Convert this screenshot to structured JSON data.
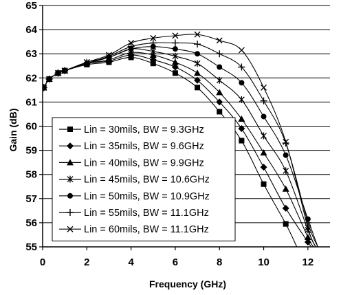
{
  "chart_data": {
    "type": "line",
    "title": "",
    "xlabel": "Frequency (GHz)",
    "ylabel": "Gain (dB)",
    "xlim": [
      0,
      13
    ],
    "ylim": [
      55,
      65
    ],
    "xticks": [
      0,
      2,
      4,
      6,
      8,
      10,
      12
    ],
    "yticks": [
      55,
      56,
      57,
      58,
      59,
      60,
      61,
      62,
      63,
      64,
      65
    ],
    "grid": "horizontal",
    "legend_position": "lower-left",
    "line_color": "#000000",
    "series": [
      {
        "name": "Lin = 30mils, BW = 9.3GHz",
        "marker": "square",
        "markers": [
          [
            0.05,
            61.6
          ],
          [
            0.3,
            61.95
          ],
          [
            0.7,
            62.2
          ],
          [
            1.0,
            62.3
          ],
          [
            2.0,
            62.55
          ],
          [
            3.0,
            62.65
          ],
          [
            4.0,
            62.85
          ],
          [
            5.0,
            62.6
          ],
          [
            6.0,
            62.2
          ],
          [
            7.0,
            61.6
          ],
          [
            8.0,
            60.6
          ],
          [
            9.0,
            59.4
          ],
          [
            10.0,
            57.6
          ],
          [
            11.0,
            55.95
          ]
        ],
        "curve": [
          [
            0.05,
            61.6
          ],
          [
            0.3,
            61.95
          ],
          [
            0.7,
            62.2
          ],
          [
            1.0,
            62.3
          ],
          [
            2.0,
            62.55
          ],
          [
            3.0,
            62.65
          ],
          [
            4.0,
            62.85
          ],
          [
            5.0,
            62.6
          ],
          [
            6.0,
            62.2
          ],
          [
            7.0,
            61.6
          ],
          [
            8.0,
            60.6
          ],
          [
            9.0,
            59.4
          ],
          [
            10.0,
            57.6
          ],
          [
            11.0,
            55.95
          ],
          [
            11.5,
            55.0
          ]
        ]
      },
      {
        "name": "Lin = 35mils, BW = 9.6GHz",
        "marker": "diamond",
        "markers": [
          [
            0.05,
            61.6
          ],
          [
            0.3,
            61.95
          ],
          [
            0.7,
            62.2
          ],
          [
            1.0,
            62.3
          ],
          [
            2.0,
            62.6
          ],
          [
            3.0,
            62.7
          ],
          [
            4.0,
            62.95
          ],
          [
            5.0,
            62.75
          ],
          [
            6.0,
            62.45
          ],
          [
            7.0,
            61.9
          ],
          [
            8.0,
            61.0
          ],
          [
            9.0,
            59.9
          ],
          [
            10.0,
            58.3
          ],
          [
            11.0,
            56.6
          ],
          [
            12.0,
            55.2
          ]
        ],
        "curve": [
          [
            0.05,
            61.6
          ],
          [
            0.3,
            61.95
          ],
          [
            0.7,
            62.2
          ],
          [
            1.0,
            62.3
          ],
          [
            2.0,
            62.6
          ],
          [
            3.0,
            62.7
          ],
          [
            4.0,
            62.95
          ],
          [
            5.0,
            62.75
          ],
          [
            6.0,
            62.45
          ],
          [
            7.0,
            61.9
          ],
          [
            8.0,
            61.0
          ],
          [
            9.0,
            59.9
          ],
          [
            10.0,
            58.3
          ],
          [
            11.0,
            56.6
          ],
          [
            12.0,
            55.2
          ],
          [
            12.15,
            55.0
          ]
        ]
      },
      {
        "name": "Lin = 40mils, BW = 9.9GHz",
        "marker": "triangle",
        "markers": [
          [
            0.05,
            61.6
          ],
          [
            0.3,
            61.95
          ],
          [
            0.7,
            62.2
          ],
          [
            1.0,
            62.3
          ],
          [
            2.0,
            62.6
          ],
          [
            3.0,
            62.75
          ],
          [
            4.0,
            63.05
          ],
          [
            5.0,
            62.95
          ],
          [
            6.0,
            62.65
          ],
          [
            7.0,
            62.2
          ],
          [
            8.0,
            61.4
          ],
          [
            9.0,
            60.3
          ],
          [
            10.0,
            58.9
          ],
          [
            11.0,
            57.4
          ],
          [
            12.0,
            55.4
          ]
        ],
        "curve": [
          [
            0.05,
            61.6
          ],
          [
            0.3,
            61.95
          ],
          [
            0.7,
            62.2
          ],
          [
            1.0,
            62.3
          ],
          [
            2.0,
            62.6
          ],
          [
            3.0,
            62.75
          ],
          [
            4.0,
            63.05
          ],
          [
            5.0,
            62.95
          ],
          [
            6.0,
            62.65
          ],
          [
            7.0,
            62.2
          ],
          [
            8.0,
            61.4
          ],
          [
            9.0,
            60.3
          ],
          [
            10.0,
            58.9
          ],
          [
            11.0,
            57.4
          ],
          [
            12.0,
            55.4
          ],
          [
            12.25,
            55.0
          ]
        ]
      },
      {
        "name": "Lin = 45mils, BW = 10.6GHz",
        "marker": "asterisk",
        "markers": [
          [
            0.05,
            61.6
          ],
          [
            0.3,
            61.95
          ],
          [
            0.7,
            62.2
          ],
          [
            1.0,
            62.3
          ],
          [
            2.0,
            62.65
          ],
          [
            3.0,
            62.85
          ],
          [
            4.0,
            63.2
          ],
          [
            5.0,
            63.1
          ],
          [
            6.0,
            62.9
          ],
          [
            7.0,
            62.6
          ],
          [
            8.0,
            61.9
          ],
          [
            9.0,
            61.1
          ],
          [
            10.0,
            59.6
          ],
          [
            11.0,
            58.15
          ],
          [
            12.0,
            55.7
          ]
        ],
        "curve": [
          [
            0.05,
            61.6
          ],
          [
            0.3,
            61.95
          ],
          [
            0.7,
            62.2
          ],
          [
            1.0,
            62.3
          ],
          [
            2.0,
            62.65
          ],
          [
            3.0,
            62.85
          ],
          [
            4.0,
            63.2
          ],
          [
            5.0,
            63.1
          ],
          [
            6.0,
            62.9
          ],
          [
            7.0,
            62.6
          ],
          [
            8.0,
            61.9
          ],
          [
            9.0,
            61.1
          ],
          [
            10.0,
            59.6
          ],
          [
            11.0,
            58.15
          ],
          [
            12.0,
            55.7
          ],
          [
            12.35,
            55.0
          ]
        ]
      },
      {
        "name": "Lin = 50mils, BW = 10.9GHz",
        "marker": "circle",
        "markers": [
          [
            0.05,
            61.6
          ],
          [
            0.3,
            61.95
          ],
          [
            0.7,
            62.2
          ],
          [
            1.0,
            62.3
          ],
          [
            2.0,
            62.6
          ],
          [
            3.0,
            62.85
          ],
          [
            4.0,
            63.2
          ],
          [
            5.0,
            63.3
          ],
          [
            6.0,
            63.2
          ],
          [
            7.0,
            63.0
          ],
          [
            8.0,
            62.45
          ],
          [
            9.0,
            61.8
          ],
          [
            10.0,
            60.4
          ],
          [
            11.0,
            58.8
          ],
          [
            12.0,
            56.15
          ]
        ],
        "curve": [
          [
            0.05,
            61.6
          ],
          [
            0.3,
            61.95
          ],
          [
            0.7,
            62.2
          ],
          [
            1.0,
            62.3
          ],
          [
            2.0,
            62.6
          ],
          [
            3.0,
            62.85
          ],
          [
            4.0,
            63.2
          ],
          [
            5.0,
            63.3
          ],
          [
            6.0,
            63.2
          ],
          [
            7.0,
            63.0
          ],
          [
            8.0,
            62.45
          ],
          [
            9.0,
            61.8
          ],
          [
            10.0,
            60.4
          ],
          [
            11.0,
            58.8
          ],
          [
            12.0,
            56.15
          ],
          [
            12.45,
            55.0
          ]
        ]
      },
      {
        "name": "Lin = 55mils, BW = 11.1GHz",
        "marker": "plus",
        "markers": [
          [
            0.05,
            61.6
          ],
          [
            0.3,
            61.95
          ],
          [
            0.7,
            62.2
          ],
          [
            1.0,
            62.3
          ],
          [
            2.0,
            62.6
          ],
          [
            3.0,
            62.9
          ],
          [
            4.0,
            63.3
          ],
          [
            5.0,
            63.45
          ],
          [
            6.0,
            63.45
          ],
          [
            7.0,
            63.4
          ],
          [
            8.0,
            63.0
          ],
          [
            9.0,
            62.45
          ],
          [
            10.0,
            61.05
          ],
          [
            11.0,
            59.3
          ],
          [
            12.0,
            56.0
          ]
        ],
        "curve": [
          [
            0.05,
            61.6
          ],
          [
            0.3,
            61.95
          ],
          [
            0.7,
            62.2
          ],
          [
            1.0,
            62.3
          ],
          [
            2.0,
            62.6
          ],
          [
            3.0,
            62.9
          ],
          [
            4.0,
            63.3
          ],
          [
            5.0,
            63.45
          ],
          [
            6.0,
            63.45
          ],
          [
            7.0,
            63.4
          ],
          [
            8.0,
            63.0
          ],
          [
            9.0,
            62.45
          ],
          [
            10.0,
            61.05
          ],
          [
            11.0,
            59.3
          ],
          [
            12.0,
            56.0
          ],
          [
            12.45,
            55.0
          ]
        ]
      },
      {
        "name": "Lin = 60mils, BW = 11.1GHz",
        "marker": "x",
        "markers": [
          [
            0.05,
            61.6
          ],
          [
            0.3,
            61.95
          ],
          [
            0.7,
            62.2
          ],
          [
            1.0,
            62.3
          ],
          [
            2.0,
            62.65
          ],
          [
            3.0,
            62.95
          ],
          [
            4.0,
            63.45
          ],
          [
            5.0,
            63.65
          ],
          [
            6.0,
            63.75
          ],
          [
            7.0,
            63.8
          ],
          [
            8.0,
            63.55
          ],
          [
            9.0,
            63.15
          ],
          [
            10.0,
            61.6
          ],
          [
            11.0,
            59.35
          ],
          [
            12.0,
            55.8
          ]
        ],
        "curve": [
          [
            0.05,
            61.6
          ],
          [
            0.3,
            61.95
          ],
          [
            0.7,
            62.2
          ],
          [
            1.0,
            62.3
          ],
          [
            2.0,
            62.65
          ],
          [
            3.0,
            62.95
          ],
          [
            4.0,
            63.45
          ],
          [
            5.0,
            63.65
          ],
          [
            6.0,
            63.75
          ],
          [
            7.0,
            63.8
          ],
          [
            8.0,
            63.55
          ],
          [
            9.0,
            63.15
          ],
          [
            10.0,
            61.6
          ],
          [
            11.0,
            59.35
          ],
          [
            12.0,
            55.8
          ],
          [
            12.35,
            55.0
          ]
        ]
      }
    ]
  }
}
